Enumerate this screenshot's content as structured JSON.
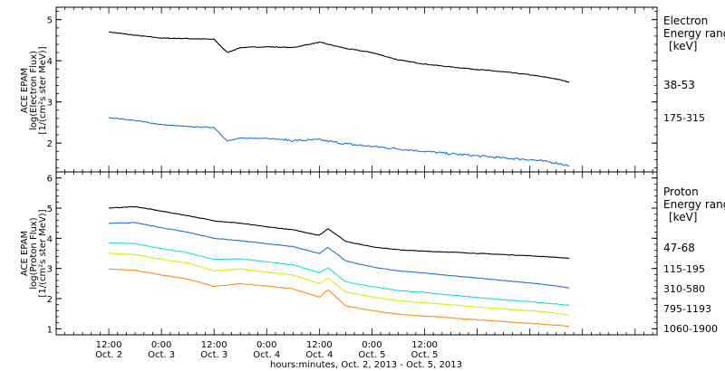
{
  "chart_data": [
    {
      "type": "line",
      "panel": "electron",
      "ylabel_lines": [
        "ACE EPAM",
        "log(Electron Flux)",
        "[1/(cm²s ster MeV)]"
      ],
      "yticks": [
        "2",
        "3",
        "4",
        "5"
      ],
      "ylim": [
        1.3,
        5.3
      ],
      "legend_title": [
        "Electron",
        "Energy range",
        "[keV]"
      ],
      "series": [
        {
          "name": "38-53",
          "color": "#000000",
          "x": [
            0,
            6,
            12,
            18,
            24,
            27,
            30,
            36,
            42,
            48,
            54,
            60,
            66,
            72,
            78,
            84,
            90,
            96,
            102,
            105
          ],
          "y": [
            4.7,
            4.62,
            4.55,
            4.54,
            4.52,
            4.2,
            4.32,
            4.34,
            4.32,
            4.45,
            4.3,
            4.2,
            4.02,
            3.92,
            3.85,
            3.79,
            3.73,
            3.66,
            3.56,
            3.48
          ]
        },
        {
          "name": "175-315",
          "color": "#1e73d8",
          "x": [
            0,
            6,
            12,
            18,
            24,
            27,
            30,
            36,
            42,
            48,
            54,
            60,
            66,
            72,
            78,
            84,
            90,
            96,
            102,
            105
          ],
          "y": [
            2.62,
            2.55,
            2.45,
            2.4,
            2.38,
            2.05,
            2.12,
            2.12,
            2.06,
            2.08,
            1.98,
            1.92,
            1.86,
            1.8,
            1.74,
            1.69,
            1.64,
            1.6,
            1.52,
            1.45
          ]
        }
      ]
    },
    {
      "type": "line",
      "panel": "proton",
      "ylabel_lines": [
        "ACE EPAM",
        "log(Proton Flux)",
        "[1/(cm²s ster MeV)]"
      ],
      "yticks": [
        "1",
        "2",
        "3",
        "4",
        "5",
        "6"
      ],
      "ylim": [
        0.8,
        6.2
      ],
      "legend_title": [
        "Proton",
        "Energy range",
        "[keV]"
      ],
      "series": [
        {
          "name": "47-68",
          "color": "#000000",
          "x": [
            0,
            6,
            12,
            18,
            24,
            30,
            36,
            42,
            48,
            50,
            54,
            60,
            66,
            72,
            78,
            84,
            90,
            96,
            102,
            105
          ],
          "y": [
            5.0,
            5.05,
            4.9,
            4.75,
            4.58,
            4.5,
            4.38,
            4.28,
            4.1,
            4.32,
            3.9,
            3.72,
            3.62,
            3.57,
            3.54,
            3.5,
            3.46,
            3.42,
            3.37,
            3.33
          ]
        },
        {
          "name": "115-195",
          "color": "#1e73d8",
          "x": [
            0,
            6,
            12,
            18,
            24,
            30,
            36,
            42,
            48,
            50,
            54,
            60,
            66,
            72,
            78,
            84,
            90,
            96,
            102,
            105
          ],
          "y": [
            4.5,
            4.52,
            4.35,
            4.2,
            4.0,
            3.92,
            3.82,
            3.72,
            3.5,
            3.7,
            3.25,
            3.05,
            2.92,
            2.85,
            2.76,
            2.68,
            2.6,
            2.52,
            2.42,
            2.35
          ]
        },
        {
          "name": "310-580",
          "color": "#1ee0c8",
          "x": [
            0,
            6,
            12,
            18,
            24,
            30,
            36,
            42,
            48,
            50,
            54,
            60,
            66,
            72,
            78,
            84,
            90,
            96,
            102,
            105
          ],
          "y": [
            3.85,
            3.82,
            3.66,
            3.52,
            3.3,
            3.32,
            3.22,
            3.12,
            2.86,
            3.02,
            2.56,
            2.4,
            2.27,
            2.2,
            2.12,
            2.04,
            1.96,
            1.9,
            1.82,
            1.78
          ]
        },
        {
          "name": "795-1193",
          "color": "#d8ec10",
          "x": [
            0,
            6,
            12,
            18,
            24,
            30,
            36,
            42,
            48,
            50,
            54,
            60,
            66,
            72,
            78,
            84,
            90,
            96,
            102,
            105
          ],
          "y": [
            3.5,
            3.46,
            3.3,
            3.18,
            2.92,
            2.98,
            2.88,
            2.78,
            2.5,
            2.68,
            2.22,
            2.06,
            1.93,
            1.86,
            1.8,
            1.72,
            1.66,
            1.6,
            1.52,
            1.45
          ]
        },
        {
          "name": "1060-1900",
          "color": "#ff8c14",
          "x": [
            0,
            6,
            12,
            18,
            24,
            30,
            36,
            42,
            48,
            50,
            54,
            60,
            66,
            72,
            78,
            84,
            90,
            96,
            102,
            105
          ],
          "y": [
            2.98,
            2.94,
            2.78,
            2.65,
            2.4,
            2.5,
            2.42,
            2.32,
            2.05,
            2.3,
            1.76,
            1.6,
            1.48,
            1.42,
            1.36,
            1.3,
            1.24,
            1.18,
            1.12,
            1.08
          ]
        }
      ]
    }
  ],
  "xaxis": {
    "xlim": [
      -12,
      125
    ],
    "tick_hours": [
      0,
      24,
      48,
      72,
      96,
      120
    ],
    "tick_labels": [
      [
        "12:00",
        "Oct. 2"
      ],
      [
        "0:00",
        "Oct. 3"
      ],
      [
        "12:00",
        "Oct. 3"
      ],
      [
        "0:00",
        "Oct. 4"
      ],
      [
        "12:00",
        "Oct. 4"
      ],
      [
        "0:00",
        "Oct. 5"
      ],
      [
        "12:00",
        "Oct. 5"
      ]
    ],
    "tick_label_hours": [
      0,
      12,
      24,
      36,
      48,
      60,
      72
    ],
    "xlabel": "hours:minutes, Oct.  2, 2013 - Oct.  5, 2013"
  }
}
